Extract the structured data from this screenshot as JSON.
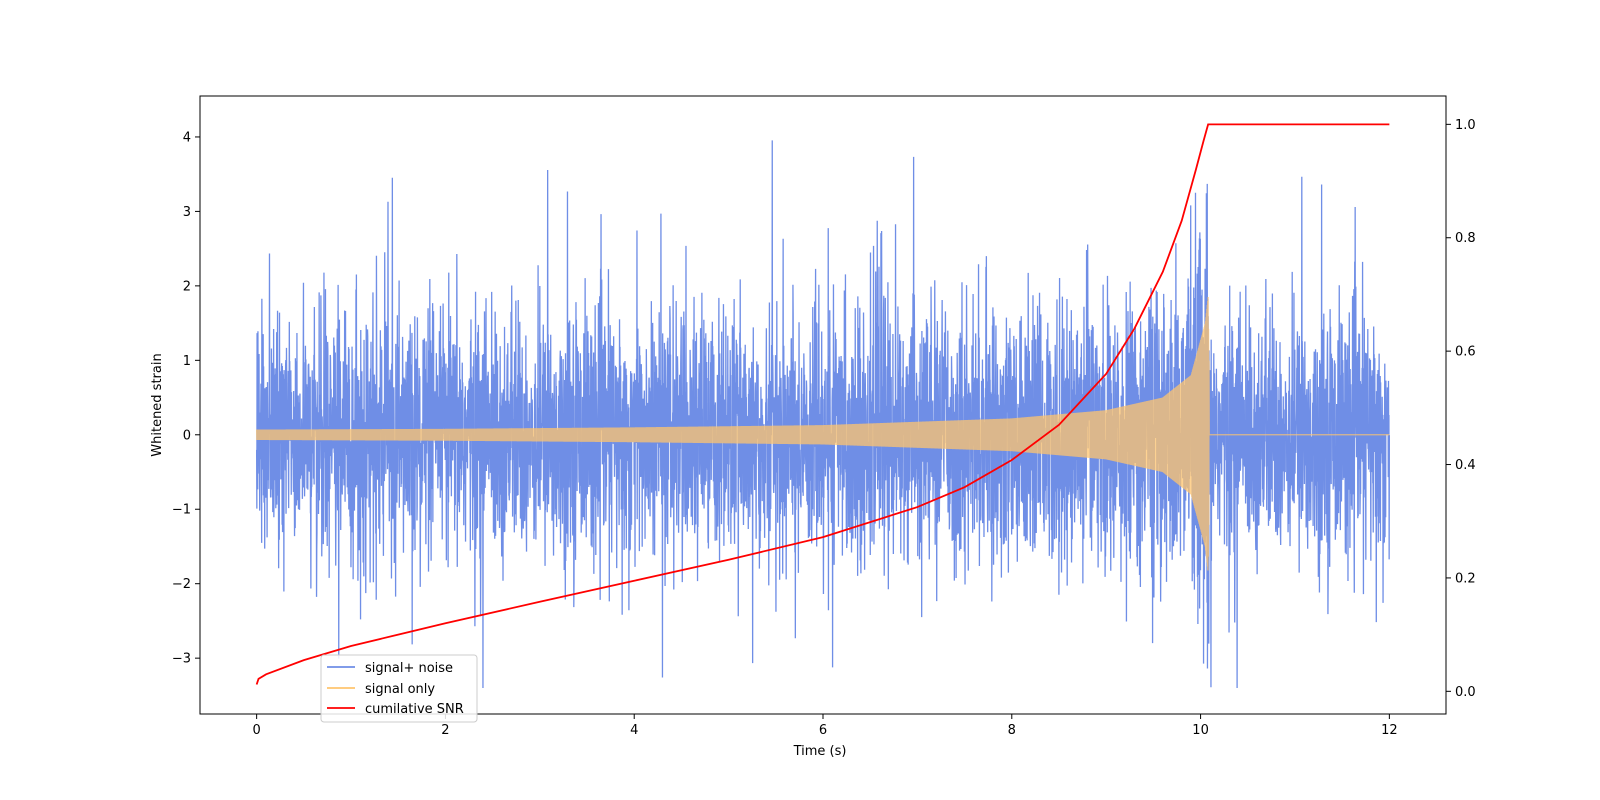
{
  "chart_data": {
    "type": "line",
    "xlabel": "Time (s)",
    "ylabel": "Whitened strain",
    "y2label": "",
    "xlim": [
      -0.6,
      12.6
    ],
    "ylim": [
      -3.75,
      4.55
    ],
    "y2lim": [
      -0.04,
      1.05
    ],
    "x_ticks": [
      0,
      2,
      4,
      6,
      8,
      10,
      12
    ],
    "y_ticks": [
      -3,
      -2,
      -1,
      0,
      1,
      2,
      3,
      4
    ],
    "y2_ticks": [
      0.0,
      0.2,
      0.4,
      0.6,
      0.8,
      1.0
    ],
    "x_tick_labels": [
      "0",
      "2",
      "4",
      "6",
      "8",
      "10",
      "12"
    ],
    "y_tick_labels": [
      "−3",
      "−2",
      "−1",
      "0",
      "1",
      "2",
      "3",
      "4"
    ],
    "y2_tick_labels": [
      "0.0",
      "0.2",
      "0.4",
      "0.6",
      "0.8",
      "1.0"
    ],
    "grid": false,
    "legend_position": "lower-left",
    "series": [
      {
        "name": "signal+ noise",
        "axis": "left",
        "color": "#6f8ee6",
        "description_kind": "noise",
        "x_range": [
          0,
          12
        ],
        "noise_std": 0.8,
        "approx_min": -3.4,
        "approx_max": 4.15
      },
      {
        "name": "signal only",
        "axis": "left",
        "color": "#ffc46e",
        "description_kind": "chirp",
        "x_range": [
          0,
          12
        ],
        "merger_time": 10.08,
        "envelope": {
          "x": [
            0,
            2,
            4,
            6,
            8,
            9,
            9.6,
            9.9,
            10.05,
            10.08,
            10.1,
            12
          ],
          "amplitude": [
            0.07,
            0.08,
            0.1,
            0.13,
            0.22,
            0.33,
            0.5,
            0.8,
            1.5,
            1.85,
            0.0,
            0.0
          ]
        }
      },
      {
        "name": "cumilative SNR",
        "axis": "right",
        "color": "#ff0000",
        "x": [
          0,
          0.02,
          0.1,
          0.5,
          1,
          2,
          3,
          4,
          5,
          6,
          7,
          7.5,
          8,
          8.5,
          9,
          9.3,
          9.6,
          9.8,
          9.95,
          10.03,
          10.08,
          12
        ],
        "values": [
          0.012,
          0.022,
          0.03,
          0.055,
          0.08,
          0.12,
          0.158,
          0.195,
          0.232,
          0.272,
          0.325,
          0.36,
          0.408,
          0.47,
          0.56,
          0.64,
          0.74,
          0.83,
          0.92,
          0.97,
          1.0,
          1.0
        ]
      }
    ]
  }
}
